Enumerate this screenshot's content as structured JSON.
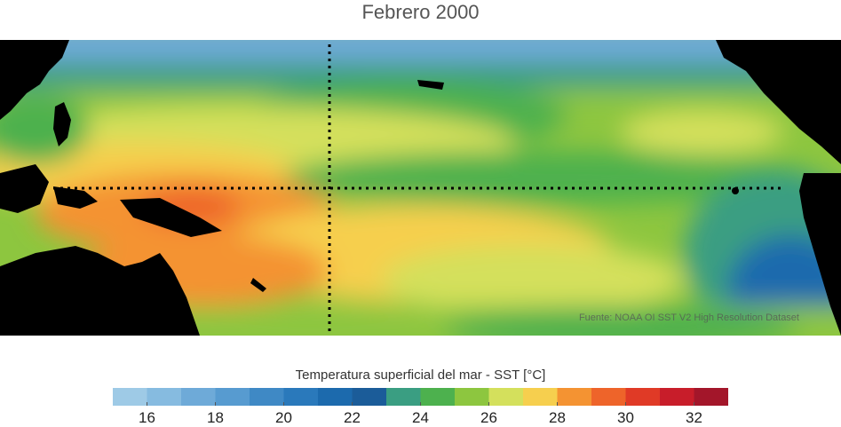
{
  "title": "Febrero 2000",
  "source": "Fuente: NOAA OI SST V2 High Resolution Dataset",
  "colorbar": {
    "label": "Temperatura superficial del mar - SST  [°C]",
    "range": [
      15,
      33
    ],
    "bins": 18,
    "ticks": [
      "16",
      "18",
      "20",
      "22",
      "24",
      "26",
      "28",
      "30",
      "32"
    ],
    "colors": [
      "#9ecae6",
      "#86bbe0",
      "#6eaad8",
      "#579bd0",
      "#3f89c5",
      "#2a79bb",
      "#1c6aad",
      "#1b5c99",
      "#3a9e82",
      "#4db14e",
      "#8dc63f",
      "#d4e05c",
      "#f6cf4e",
      "#f49332",
      "#ee642a",
      "#e03a26",
      "#c81d2a",
      "#a3162a"
    ]
  },
  "map": {
    "land_color": "#000000",
    "reference_line_style": "dotted"
  }
}
